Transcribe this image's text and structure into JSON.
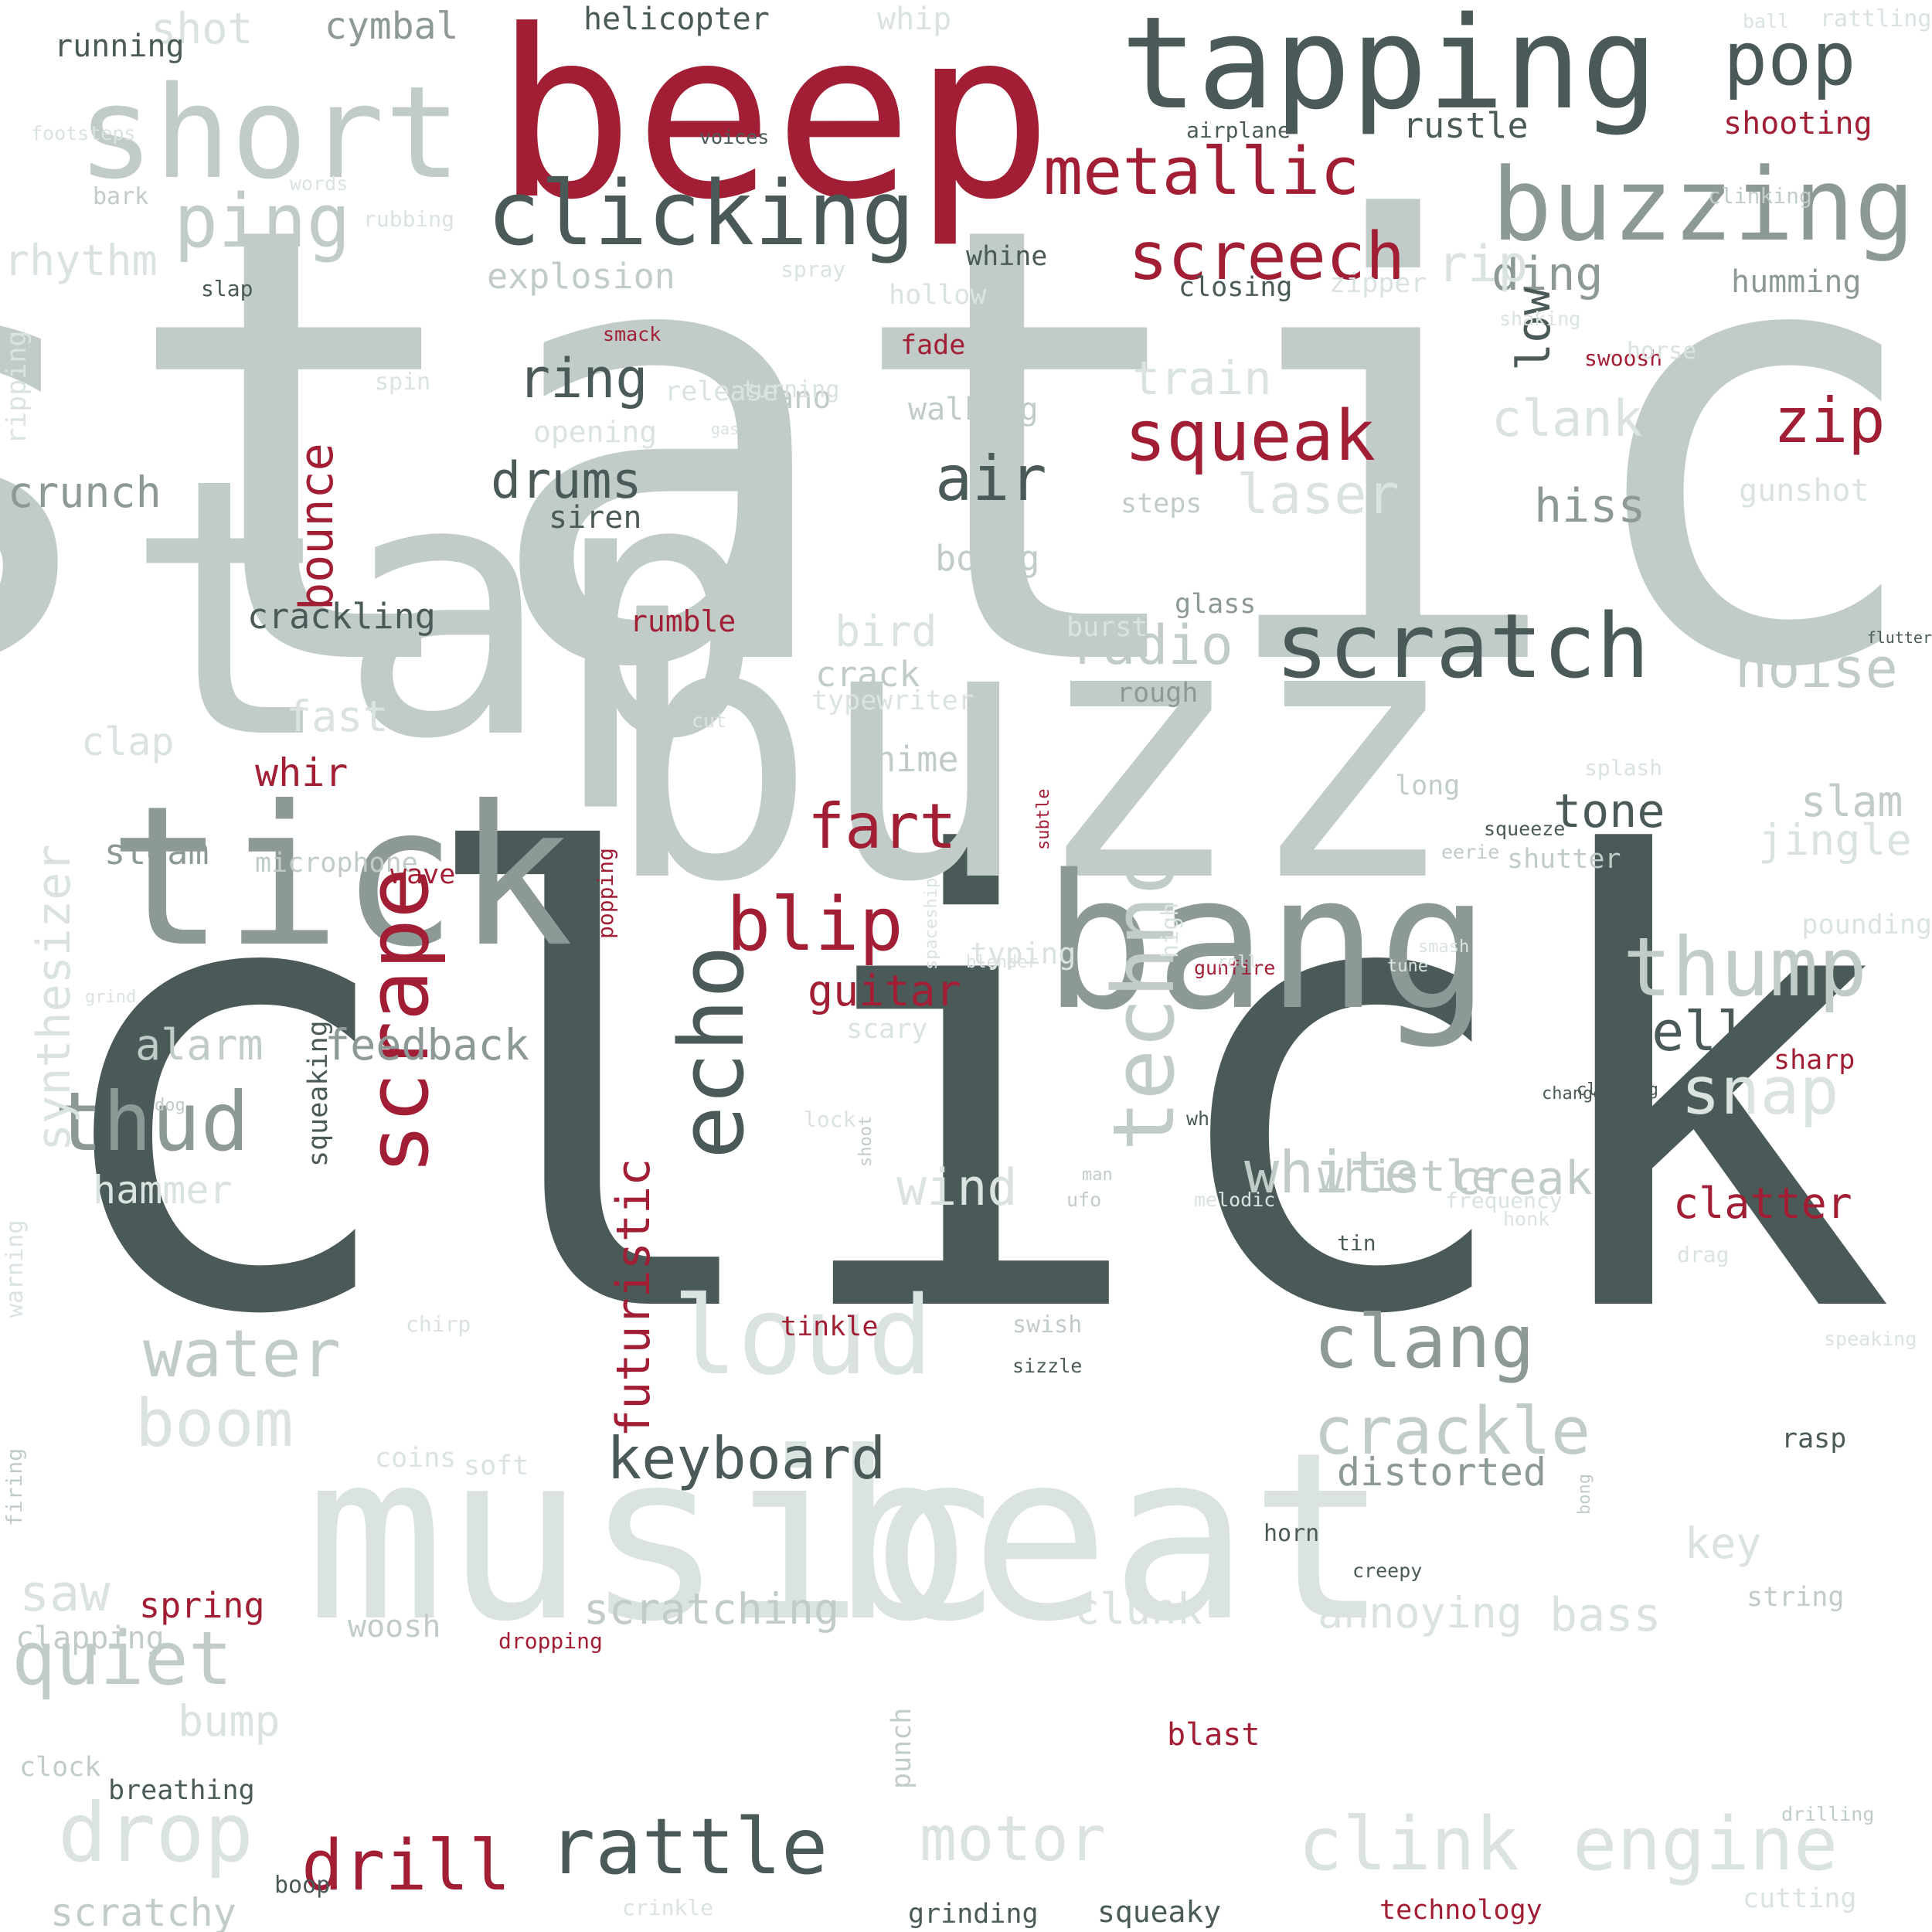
{
  "colors": {
    "dark": "#4a5a58",
    "red": "#a21e35",
    "mid": "#8c9997",
    "light": "#c1ccc8",
    "pale": "#dae3e0"
  },
  "words": [
    {
      "text": "static",
      "color": "light",
      "vertical": false
    },
    {
      "text": "click",
      "color": "dark",
      "vertical": false
    },
    {
      "text": "buzz",
      "color": "light",
      "vertical": false
    },
    {
      "text": "tap",
      "color": "light",
      "vertical": false
    },
    {
      "text": "music",
      "color": "pale",
      "vertical": false
    },
    {
      "text": "beat",
      "color": "pale",
      "vertical": false
    },
    {
      "text": "beep",
      "color": "red",
      "vertical": false
    },
    {
      "text": "bang",
      "color": "mid",
      "vertical": false
    },
    {
      "text": "tick",
      "color": "mid",
      "vertical": false
    },
    {
      "text": "tapping",
      "color": "dark",
      "vertical": false
    },
    {
      "text": "short",
      "color": "light",
      "vertical": false
    },
    {
      "text": "buzzing",
      "color": "mid",
      "vertical": false
    },
    {
      "text": "clicking",
      "color": "dark",
      "vertical": false
    },
    {
      "text": "scratch",
      "color": "dark",
      "vertical": false
    },
    {
      "text": "echo",
      "color": "dark",
      "vertical": true
    },
    {
      "text": "scrape",
      "color": "red",
      "vertical": true
    },
    {
      "text": "techno",
      "color": "light",
      "vertical": true
    },
    {
      "text": "loud",
      "color": "pale",
      "vertical": false
    },
    {
      "text": "metallic",
      "color": "red",
      "vertical": false
    },
    {
      "text": "pop",
      "color": "dark",
      "vertical": false
    },
    {
      "text": "ping",
      "color": "light",
      "vertical": false
    },
    {
      "text": "thump",
      "color": "light",
      "vertical": false
    },
    {
      "text": "screech",
      "color": "red",
      "vertical": false
    },
    {
      "text": "squeak",
      "color": "red",
      "vertical": false
    },
    {
      "text": "rattle",
      "color": "dark",
      "vertical": false
    },
    {
      "text": "clang",
      "color": "mid",
      "vertical": false
    },
    {
      "text": "crackle",
      "color": "light",
      "vertical": false
    },
    {
      "text": "quiet",
      "color": "light",
      "vertical": false
    },
    {
      "text": "thud",
      "color": "mid",
      "vertical": false
    },
    {
      "text": "water",
      "color": "light",
      "vertical": false
    },
    {
      "text": "boom",
      "color": "pale",
      "vertical": false
    },
    {
      "text": "drop",
      "color": "pale",
      "vertical": false
    },
    {
      "text": "motor",
      "color": "pale",
      "vertical": false
    },
    {
      "text": "clink",
      "color": "pale",
      "vertical": false
    },
    {
      "text": "engine",
      "color": "pale",
      "vertical": false
    },
    {
      "text": "blip",
      "color": "red",
      "vertical": false
    },
    {
      "text": "fart",
      "color": "red",
      "vertical": false
    },
    {
      "text": "zip",
      "color": "red",
      "vertical": false
    },
    {
      "text": "drill",
      "color": "red",
      "vertical": false
    },
    {
      "text": "keyboard",
      "color": "dark",
      "vertical": false
    },
    {
      "text": "snap",
      "color": "pale",
      "vertical": false
    },
    {
      "text": "white",
      "color": "light",
      "vertical": false
    },
    {
      "text": "futuristic",
      "color": "red",
      "vertical": true
    },
    {
      "text": "synthesizer",
      "color": "pale",
      "vertical": true
    },
    {
      "text": "bounce",
      "color": "red",
      "vertical": true
    },
    {
      "text": "air",
      "color": "dark",
      "vertical": false
    },
    {
      "text": "ring",
      "color": "dark",
      "vertical": false
    },
    {
      "text": "drums",
      "color": "dark",
      "vertical": false
    },
    {
      "text": "radio",
      "color": "light",
      "vertical": false
    },
    {
      "text": "noise",
      "color": "light",
      "vertical": false
    },
    {
      "text": "ding",
      "color": "mid",
      "vertical": false
    },
    {
      "text": "rip",
      "color": "pale",
      "vertical": false
    },
    {
      "text": "low",
      "color": "dark",
      "vertical": true
    },
    {
      "text": "laser",
      "color": "pale",
      "vertical": false
    },
    {
      "text": "hiss",
      "color": "mid",
      "vertical": false
    },
    {
      "text": "clank",
      "color": "pale",
      "vertical": false
    },
    {
      "text": "train",
      "color": "pale",
      "vertical": false
    },
    {
      "text": "bell",
      "color": "dark",
      "vertical": false
    },
    {
      "text": "tone",
      "color": "dark",
      "vertical": false
    },
    {
      "text": "slam",
      "color": "light",
      "vertical": false
    },
    {
      "text": "jingle",
      "color": "pale",
      "vertical": false
    },
    {
      "text": "alarm",
      "color": "light",
      "vertical": false
    },
    {
      "text": "feedback",
      "color": "mid",
      "vertical": false
    },
    {
      "text": "guitar",
      "color": "red",
      "vertical": false
    },
    {
      "text": "whistle",
      "color": "light",
      "vertical": false
    },
    {
      "text": "wind",
      "color": "pale",
      "vertical": false
    },
    {
      "text": "creak",
      "color": "light",
      "vertical": false
    },
    {
      "text": "clatter",
      "color": "red",
      "vertical": false
    },
    {
      "text": "distorted",
      "color": "mid",
      "vertical": false
    },
    {
      "text": "scratching",
      "color": "light",
      "vertical": false
    },
    {
      "text": "annoying",
      "color": "pale",
      "vertical": false
    },
    {
      "text": "bass",
      "color": "pale",
      "vertical": false
    },
    {
      "text": "clunk",
      "color": "pale",
      "vertical": false
    },
    {
      "text": "key",
      "color": "pale",
      "vertical": false
    },
    {
      "text": "saw",
      "color": "pale",
      "vertical": false
    },
    {
      "text": "bump",
      "color": "pale",
      "vertical": false
    },
    {
      "text": "scratchy",
      "color": "light",
      "vertical": false
    },
    {
      "text": "crunch",
      "color": "mid",
      "vertical": false
    },
    {
      "text": "rhythm",
      "color": "pale",
      "vertical": false
    },
    {
      "text": "shot",
      "color": "pale",
      "vertical": false
    },
    {
      "text": "cymbal",
      "color": "mid",
      "vertical": false
    },
    {
      "text": "rustle",
      "color": "dark",
      "vertical": false
    },
    {
      "text": "shooting",
      "color": "red",
      "vertical": false
    },
    {
      "text": "explosion",
      "color": "light",
      "vertical": false
    },
    {
      "text": "hammer",
      "color": "pale",
      "vertical": false
    },
    {
      "text": "boing",
      "color": "light",
      "vertical": false
    },
    {
      "text": "crackling",
      "color": "dark",
      "vertical": false
    },
    {
      "text": "siren",
      "color": "dark",
      "vertical": false
    },
    {
      "text": "rumble",
      "color": "red",
      "vertical": false
    },
    {
      "text": "bird",
      "color": "pale",
      "vertical": false
    },
    {
      "text": "fast",
      "color": "pale",
      "vertical": false
    },
    {
      "text": "clap",
      "color": "pale",
      "vertical": false
    },
    {
      "text": "whir",
      "color": "red",
      "vertical": false
    },
    {
      "text": "crack",
      "color": "light",
      "vertical": false
    },
    {
      "text": "chime",
      "color": "light",
      "vertical": false
    },
    {
      "text": "steam",
      "color": "mid",
      "vertical": false
    },
    {
      "text": "walking",
      "color": "light",
      "vertical": false
    },
    {
      "text": "piano",
      "color": "light",
      "vertical": false
    },
    {
      "text": "opening",
      "color": "pale",
      "vertical": false
    },
    {
      "text": "humming",
      "color": "mid",
      "vertical": false
    },
    {
      "text": "gunshot",
      "color": "pale",
      "vertical": false
    },
    {
      "text": "closing",
      "color": "dark",
      "vertical": false
    },
    {
      "text": "zipper",
      "color": "pale",
      "vertical": false
    },
    {
      "text": "whine",
      "color": "dark",
      "vertical": false
    },
    {
      "text": "hollow",
      "color": "pale",
      "vertical": false
    },
    {
      "text": "fade",
      "color": "red",
      "vertical": false
    },
    {
      "text": "steps",
      "color": "light",
      "vertical": false
    },
    {
      "text": "glass",
      "color": "mid",
      "vertical": false
    },
    {
      "text": "burst",
      "color": "pale",
      "vertical": false
    },
    {
      "text": "rough",
      "color": "mid",
      "vertical": false
    },
    {
      "text": "typewriter",
      "color": "pale",
      "vertical": false
    },
    {
      "text": "long",
      "color": "light",
      "vertical": false
    },
    {
      "text": "shutter",
      "color": "light",
      "vertical": false
    },
    {
      "text": "splash",
      "color": "pale",
      "vertical": false
    },
    {
      "text": "microphone",
      "color": "light",
      "vertical": false
    },
    {
      "text": "wave",
      "color": "red",
      "vertical": false
    },
    {
      "text": "scary",
      "color": "pale",
      "vertical": false
    },
    {
      "text": "typing",
      "color": "pale",
      "vertical": false
    },
    {
      "text": "lock",
      "color": "pale",
      "vertical": false
    },
    {
      "text": "whoosh",
      "color": "dark",
      "vertical": false
    },
    {
      "text": "gunfire",
      "color": "red",
      "vertical": false
    },
    {
      "text": "pounding",
      "color": "pale",
      "vertical": false
    },
    {
      "text": "sharp",
      "color": "red",
      "vertical": false
    },
    {
      "text": "tinkle",
      "color": "red",
      "vertical": false
    },
    {
      "text": "chirp",
      "color": "pale",
      "vertical": false
    },
    {
      "text": "swish",
      "color": "light",
      "vertical": false
    },
    {
      "text": "sizzle",
      "color": "dark",
      "vertical": false
    },
    {
      "text": "soft",
      "color": "pale",
      "vertical": false
    },
    {
      "text": "coins",
      "color": "pale",
      "vertical": false
    },
    {
      "text": "horn",
      "color": "dark",
      "vertical": false
    },
    {
      "text": "creepy",
      "color": "dark",
      "vertical": false
    },
    {
      "text": "frequency",
      "color": "pale",
      "vertical": false
    },
    {
      "text": "honk",
      "color": "pale",
      "vertical": false
    },
    {
      "text": "drag",
      "color": "pale",
      "vertical": false
    },
    {
      "text": "tin",
      "color": "dark",
      "vertical": false
    },
    {
      "text": "rasp",
      "color": "dark",
      "vertical": false
    },
    {
      "text": "speaking",
      "color": "pale",
      "vertical": false
    },
    {
      "text": "string",
      "color": "light",
      "vertical": false
    },
    {
      "text": "spring",
      "color": "red",
      "vertical": false
    },
    {
      "text": "woosh",
      "color": "light",
      "vertical": false
    },
    {
      "text": "clapping",
      "color": "light",
      "vertical": false
    },
    {
      "text": "dropping",
      "color": "red",
      "vertical": false
    },
    {
      "text": "blast",
      "color": "red",
      "vertical": false
    },
    {
      "text": "clock",
      "color": "light",
      "vertical": false
    },
    {
      "text": "breathing",
      "color": "dark",
      "vertical": false
    },
    {
      "text": "boop",
      "color": "dark",
      "vertical": false
    },
    {
      "text": "crinkle",
      "color": "pale",
      "vertical": false
    },
    {
      "text": "grinding",
      "color": "dark",
      "vertical": false
    },
    {
      "text": "squeaky",
      "color": "dark",
      "vertical": false
    },
    {
      "text": "technology",
      "color": "red",
      "vertical": false
    },
    {
      "text": "cutting",
      "color": "pale",
      "vertical": false
    },
    {
      "text": "drilling",
      "color": "light",
      "vertical": false
    },
    {
      "text": "running",
      "color": "dark",
      "vertical": false
    },
    {
      "text": "helicopter",
      "color": "dark",
      "vertical": false
    },
    {
      "text": "whip",
      "color": "pale",
      "vertical": false
    },
    {
      "text": "ball",
      "color": "pale",
      "vertical": false
    },
    {
      "text": "rattling",
      "color": "pale",
      "vertical": false
    },
    {
      "text": "footsteps",
      "color": "pale",
      "vertical": false
    },
    {
      "text": "voices",
      "color": "dark",
      "vertical": false
    },
    {
      "text": "airplane",
      "color": "dark",
      "vertical": false
    },
    {
      "text": "bark",
      "color": "light",
      "vertical": false
    },
    {
      "text": "words",
      "color": "pale",
      "vertical": false
    },
    {
      "text": "rubbing",
      "color": "pale",
      "vertical": false
    },
    {
      "text": "slap",
      "color": "dark",
      "vertical": false
    },
    {
      "text": "spray",
      "color": "pale",
      "vertical": false
    },
    {
      "text": "clinking",
      "color": "light",
      "vertical": false
    },
    {
      "text": "shaking",
      "color": "pale",
      "vertical": false
    },
    {
      "text": "smack",
      "color": "red",
      "vertical": false
    },
    {
      "text": "swoosh",
      "color": "red",
      "vertical": false
    },
    {
      "text": "horse",
      "color": "pale",
      "vertical": false
    },
    {
      "text": "spin",
      "color": "pale",
      "vertical": false
    },
    {
      "text": "turning",
      "color": "pale",
      "vertical": false
    },
    {
      "text": "release",
      "color": "pale",
      "vertical": false
    },
    {
      "text": "gas",
      "color": "pale",
      "vertical": false
    },
    {
      "text": "squeeze",
      "color": "dark",
      "vertical": false
    },
    {
      "text": "flutter",
      "color": "dark",
      "vertical": false
    },
    {
      "text": "eerie",
      "color": "light",
      "vertical": false
    },
    {
      "text": "melodic",
      "color": "pale",
      "vertical": false
    },
    {
      "text": "ufo",
      "color": "light",
      "vertical": false
    },
    {
      "text": "cut",
      "color": "pale",
      "vertical": false
    },
    {
      "text": "change",
      "color": "dark",
      "vertical": false
    },
    {
      "text": "clanking",
      "color": "dark",
      "vertical": false
    },
    {
      "text": "grind",
      "color": "pale",
      "vertical": false
    },
    {
      "text": "dog",
      "color": "light",
      "vertical": false
    },
    {
      "text": "blender",
      "color": "pale",
      "vertical": false
    },
    {
      "text": "roll",
      "color": "pale",
      "vertical": false
    },
    {
      "text": "tune",
      "color": "pale",
      "vertical": false
    },
    {
      "text": "smash",
      "color": "pale",
      "vertical": false
    },
    {
      "text": "man",
      "color": "light",
      "vertical": false
    },
    {
      "text": "shoot",
      "color": "light",
      "vertical": true
    },
    {
      "text": "ripping",
      "color": "pale",
      "vertical": true
    },
    {
      "text": "popping",
      "color": "red",
      "vertical": true
    },
    {
      "text": "subtle",
      "color": "red",
      "vertical": true
    },
    {
      "text": "spaceship",
      "color": "pale",
      "vertical": true
    },
    {
      "text": "high",
      "color": "pale",
      "vertical": true
    },
    {
      "text": "squeaking",
      "color": "dark",
      "vertical": true
    },
    {
      "text": "warning",
      "color": "pale",
      "vertical": true
    },
    {
      "text": "firing",
      "color": "light",
      "vertical": true
    },
    {
      "text": "bong",
      "color": "light",
      "vertical": true
    },
    {
      "text": "punch",
      "color": "light",
      "vertical": true
    }
  ]
}
